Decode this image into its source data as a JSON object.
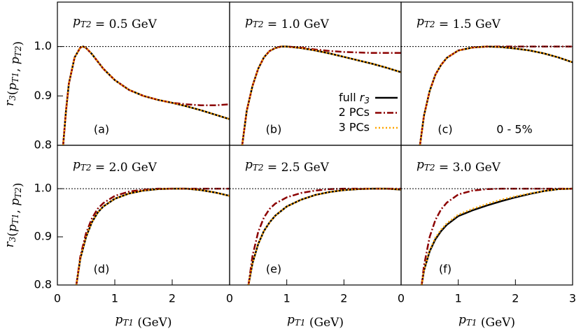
{
  "chart_data": [
    {
      "type": "line",
      "title": "pT2 = 0.5 GeV",
      "panel_label": "(a)",
      "ylabel": "r3(pT1, pT2)",
      "xlim": [
        0,
        3
      ],
      "ylim": [
        0.8,
        1.09
      ],
      "yticks": [
        0.8,
        0.9,
        {
          "value": 1,
          "label": "1.0"
        }
      ],
      "reference_line": 1,
      "x": [
        0.1,
        0.15,
        0.2,
        0.3,
        0.4,
        0.45,
        0.5,
        0.6,
        0.8,
        1.0,
        1.25,
        1.5,
        1.75,
        2.0,
        2.25,
        2.5,
        2.75,
        3.0
      ],
      "series": [
        {
          "color": "#000000",
          "values": [
            0.8,
            0.87,
            0.925,
            0.978,
            0.998,
            1.0,
            0.997,
            0.985,
            0.955,
            0.932,
            0.912,
            0.9,
            0.892,
            0.886,
            0.879,
            0.871,
            0.862,
            0.853
          ]
        },
        {
          "color": "#8b0000",
          "values": [
            0.8,
            0.87,
            0.925,
            0.978,
            0.998,
            1.0,
            0.997,
            0.985,
            0.955,
            0.932,
            0.912,
            0.9,
            0.892,
            0.886,
            0.883,
            0.881,
            0.881,
            0.883
          ]
        },
        {
          "color": "#ffa500",
          "values": [
            0.8,
            0.87,
            0.925,
            0.978,
            0.998,
            1.0,
            0.997,
            0.985,
            0.955,
            0.932,
            0.912,
            0.9,
            0.892,
            0.886,
            0.879,
            0.871,
            0.862,
            0.853
          ]
        }
      ]
    },
    {
      "type": "line",
      "title": "pT2 = 1.0 GeV",
      "panel_label": "(b)",
      "xlim": [
        0,
        3
      ],
      "ylim": [
        0.8,
        1.09
      ],
      "reference_line": 1,
      "x": [
        0.22,
        0.3,
        0.4,
        0.5,
        0.6,
        0.7,
        0.8,
        0.9,
        1.0,
        1.25,
        1.5,
        1.75,
        2.0,
        2.25,
        2.5,
        2.75,
        3.0
      ],
      "series": [
        {
          "name": "full r3",
          "color": "#000000",
          "values": [
            0.8,
            0.87,
            0.92,
            0.955,
            0.978,
            0.991,
            0.997,
            1.0,
            1.0,
            0.997,
            0.992,
            0.986,
            0.979,
            0.972,
            0.965,
            0.957,
            0.948
          ]
        },
        {
          "name": "2 PCs",
          "color": "#8b0000",
          "values": [
            0.8,
            0.87,
            0.92,
            0.955,
            0.978,
            0.991,
            0.997,
            1.0,
            1.0,
            0.998,
            0.994,
            0.991,
            0.989,
            0.988,
            0.987,
            0.987,
            0.987
          ]
        },
        {
          "name": "3 PCs",
          "color": "#ffa500",
          "values": [
            0.8,
            0.87,
            0.92,
            0.955,
            0.978,
            0.991,
            0.997,
            1.0,
            1.0,
            0.997,
            0.992,
            0.986,
            0.979,
            0.972,
            0.965,
            0.957,
            0.948
          ]
        }
      ]
    },
    {
      "type": "line",
      "title": "pT2 = 1.5 GeV",
      "panel_label": "(c)",
      "note": "0 - 5%",
      "xlim": [
        0,
        3
      ],
      "ylim": [
        0.8,
        1.09
      ],
      "reference_line": 1,
      "x": [
        0.33,
        0.4,
        0.5,
        0.6,
        0.7,
        0.8,
        1.0,
        1.25,
        1.5,
        1.75,
        2.0,
        2.25,
        2.5,
        2.75,
        3.0
      ],
      "series": [
        {
          "color": "#000000",
          "values": [
            0.8,
            0.86,
            0.91,
            0.943,
            0.963,
            0.977,
            0.992,
            0.998,
            1.0,
            0.999,
            0.996,
            0.992,
            0.986,
            0.978,
            0.968
          ]
        },
        {
          "color": "#8b0000",
          "values": [
            0.8,
            0.86,
            0.91,
            0.943,
            0.963,
            0.977,
            0.992,
            0.998,
            1.0,
            1.0,
            1.0,
            1.0,
            1.0,
            1.0,
            1.0
          ]
        },
        {
          "color": "#ffa500",
          "values": [
            0.8,
            0.86,
            0.91,
            0.943,
            0.963,
            0.977,
            0.992,
            0.998,
            1.0,
            0.999,
            0.996,
            0.992,
            0.986,
            0.978,
            0.968
          ]
        }
      ]
    },
    {
      "type": "line",
      "title": "pT2 = 2.0 GeV",
      "panel_label": "(d)",
      "ylabel": "r3(pT1, pT2)",
      "xlabel": "pT1 (GeV)",
      "xlim": [
        0,
        3
      ],
      "ylim": [
        0.8,
        1.09
      ],
      "xticks": [
        0,
        1,
        2
      ],
      "yticks": [
        0.8,
        0.9,
        {
          "value": 1,
          "label": "1.0"
        }
      ],
      "reference_line": 1,
      "x": [
        0.33,
        0.4,
        0.5,
        0.6,
        0.7,
        0.8,
        1.0,
        1.25,
        1.5,
        1.75,
        2.0,
        2.25,
        2.5,
        2.75,
        3.0
      ],
      "series": [
        {
          "color": "#000000",
          "values": [
            0.8,
            0.855,
            0.9,
            0.93,
            0.95,
            0.963,
            0.979,
            0.99,
            0.996,
            0.999,
            1.0,
            1.0,
            0.997,
            0.992,
            0.985
          ]
        },
        {
          "color": "#8b0000",
          "values": [
            0.8,
            0.86,
            0.908,
            0.938,
            0.958,
            0.97,
            0.985,
            0.994,
            0.998,
            1.0,
            1.0,
            1.0,
            1.0,
            1.0,
            1.0
          ]
        },
        {
          "color": "#ffa500",
          "values": [
            0.8,
            0.855,
            0.9,
            0.93,
            0.95,
            0.963,
            0.979,
            0.99,
            0.996,
            0.999,
            1.0,
            1.0,
            0.997,
            0.992,
            0.985
          ]
        }
      ]
    },
    {
      "type": "line",
      "title": "pT2 = 2.5 GeV",
      "panel_label": "(e)",
      "xlabel": "pT1 (GeV)",
      "xlim": [
        0,
        3
      ],
      "ylim": [
        0.8,
        1.09
      ],
      "xticks": [
        0,
        1,
        2
      ],
      "reference_line": 1,
      "x": [
        0.33,
        0.4,
        0.5,
        0.6,
        0.7,
        0.8,
        1.0,
        1.25,
        1.5,
        1.75,
        2.0,
        2.25,
        2.5,
        2.75,
        3.0
      ],
      "series": [
        {
          "color": "#000000",
          "values": [
            0.8,
            0.845,
            0.885,
            0.912,
            0.93,
            0.944,
            0.963,
            0.977,
            0.987,
            0.993,
            0.997,
            0.999,
            1.0,
            1.0,
            0.998
          ]
        },
        {
          "color": "#8b0000",
          "values": [
            0.8,
            0.86,
            0.91,
            0.94,
            0.958,
            0.969,
            0.982,
            0.991,
            0.996,
            0.999,
            1.0,
            1.0,
            1.0,
            1.0,
            1.0
          ]
        },
        {
          "color": "#ffa500",
          "values": [
            0.8,
            0.845,
            0.885,
            0.912,
            0.93,
            0.944,
            0.963,
            0.977,
            0.987,
            0.993,
            0.997,
            0.999,
            1.0,
            1.0,
            0.998
          ]
        }
      ]
    },
    {
      "type": "line",
      "title": "pT2 = 3.0 GeV",
      "panel_label": "(f)",
      "xlabel": "pT1 (GeV)",
      "xlim": [
        0,
        3
      ],
      "ylim": [
        0.8,
        1.09
      ],
      "xticks": [
        0,
        1,
        2,
        3
      ],
      "reference_line": 1,
      "x": [
        0.36,
        0.4,
        0.5,
        0.6,
        0.7,
        0.8,
        1.0,
        1.25,
        1.5,
        1.75,
        2.0,
        2.25,
        2.5,
        2.75,
        3.0
      ],
      "series": [
        {
          "color": "#000000",
          "values": [
            0.8,
            0.83,
            0.87,
            0.895,
            0.912,
            0.925,
            0.943,
            0.955,
            0.965,
            0.974,
            0.982,
            0.989,
            0.995,
            0.999,
            1.0
          ]
        },
        {
          "color": "#8b0000",
          "values": [
            0.8,
            0.84,
            0.9,
            0.935,
            0.957,
            0.971,
            0.988,
            0.996,
            0.999,
            1.0,
            1.0,
            1.0,
            1.0,
            1.0,
            1.0
          ]
        },
        {
          "color": "#ffa500",
          "values": [
            0.8,
            0.83,
            0.872,
            0.898,
            0.915,
            0.928,
            0.946,
            0.958,
            0.968,
            0.977,
            0.984,
            0.99,
            0.995,
            0.999,
            1.0
          ]
        }
      ]
    }
  ]
}
